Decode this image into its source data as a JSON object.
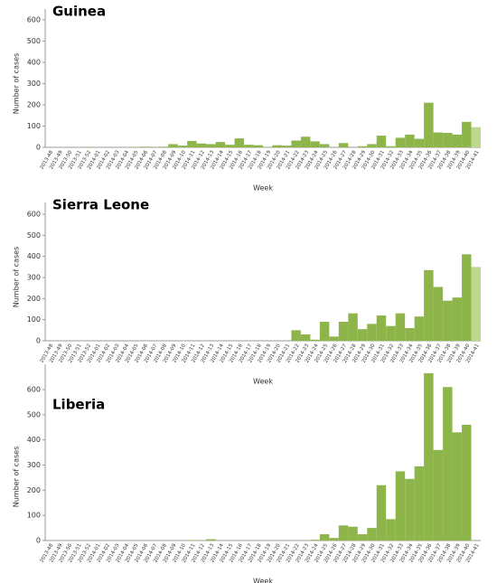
{
  "chart_data": [
    {
      "type": "bar",
      "title": "Guinea",
      "xlabel": "Week",
      "ylabel": "Number of cases",
      "categories": [
        "2013-48",
        "2013-49",
        "2013-50",
        "2013-51",
        "2013-52",
        "2014-01",
        "2014-02",
        "2014-03",
        "2014-04",
        "2014-05",
        "2014-06",
        "2014-07",
        "2014-08",
        "2014-09",
        "2014-10",
        "2014-11",
        "2014-12",
        "2014-13",
        "2014-14",
        "2014-15",
        "2014-16",
        "2014-17",
        "2014-18",
        "2014-19",
        "2014-20",
        "2014-21",
        "2014-22",
        "2014-23",
        "2014-24",
        "2014-25",
        "2014-26",
        "2014-27",
        "2014-28",
        "2014-29",
        "2014-30",
        "2014-31",
        "2014-32",
        "2014-33",
        "2014-34",
        "2014-35",
        "2014-36",
        "2014-37",
        "2014-38",
        "2014-39",
        "2014-40",
        "2014-41"
      ],
      "values": [
        0,
        0,
        0,
        0,
        2,
        0,
        0,
        0,
        1,
        1,
        3,
        1,
        3,
        15,
        8,
        30,
        18,
        15,
        25,
        12,
        42,
        12,
        10,
        0,
        10,
        8,
        32,
        50,
        28,
        15,
        0,
        20,
        0,
        5,
        15,
        55,
        5,
        45,
        60,
        40,
        210,
        70,
        68,
        60,
        120,
        95
      ],
      "color": "#8db54a",
      "last_bar_color": "#bcd98f",
      "ylim": [
        0,
        600
      ],
      "yticks": [
        0,
        100,
        200,
        300,
        400,
        500,
        600
      ]
    },
    {
      "type": "bar",
      "title": "Sierra Leone",
      "xlabel": "Week",
      "ylabel": "Number of cases",
      "categories": [
        "2013-48",
        "2013-49",
        "2013-50",
        "2013-51",
        "2013-52",
        "2014-01",
        "2014-02",
        "2014-03",
        "2014-04",
        "2014-05",
        "2014-06",
        "2014-07",
        "2014-08",
        "2014-09",
        "2014-10",
        "2014-11",
        "2014-12",
        "2014-13",
        "2014-14",
        "2014-15",
        "2014-16",
        "2014-17",
        "2014-18",
        "2014-19",
        "2014-20",
        "2014-21",
        "2014-22",
        "2014-23",
        "2014-24",
        "2014-25",
        "2014-26",
        "2014-27",
        "2014-28",
        "2014-29",
        "2014-30",
        "2014-31",
        "2014-32",
        "2014-33",
        "2014-34",
        "2014-35",
        "2014-36",
        "2014-37",
        "2014-38",
        "2014-39",
        "2014-40",
        "2014-41"
      ],
      "values": [
        0,
        0,
        0,
        0,
        0,
        0,
        0,
        0,
        0,
        0,
        0,
        0,
        0,
        0,
        0,
        0,
        0,
        0,
        0,
        0,
        0,
        0,
        0,
        0,
        0,
        0,
        50,
        30,
        5,
        90,
        20,
        90,
        130,
        55,
        80,
        120,
        70,
        130,
        60,
        115,
        335,
        255,
        190,
        205,
        410,
        350
      ],
      "color": "#8db54a",
      "last_bar_color": "#bcd98f",
      "ylim": [
        0,
        600
      ],
      "yticks": [
        0,
        100,
        200,
        300,
        400,
        500,
        600
      ]
    },
    {
      "type": "bar",
      "title": "Liberia",
      "xlabel": "Week",
      "ylabel": "Number of cases",
      "categories": [
        "2013-48",
        "2013-49",
        "2013-50",
        "2013-51",
        "2013-52",
        "2014-01",
        "2014-02",
        "2014-03",
        "2014-04",
        "2014-05",
        "2014-06",
        "2014-07",
        "2014-08",
        "2014-09",
        "2014-10",
        "2014-11",
        "2014-12",
        "2014-13",
        "2014-14",
        "2014-15",
        "2014-16",
        "2014-17",
        "2014-18",
        "2014-19",
        "2014-20",
        "2014-21",
        "2014-22",
        "2014-23",
        "2014-24",
        "2014-25",
        "2014-26",
        "2014-27",
        "2014-28",
        "2014-29",
        "2014-30",
        "2014-31",
        "2014-32",
        "2014-33",
        "2014-34",
        "2014-35",
        "2014-36",
        "2014-37",
        "2014-38",
        "2014-39",
        "2014-40",
        "2014-41"
      ],
      "values": [
        0,
        0,
        0,
        0,
        0,
        0,
        0,
        0,
        0,
        0,
        0,
        0,
        0,
        0,
        0,
        2,
        0,
        5,
        0,
        0,
        0,
        0,
        0,
        0,
        0,
        0,
        0,
        0,
        3,
        25,
        10,
        60,
        55,
        25,
        50,
        220,
        85,
        275,
        245,
        295,
        665,
        360,
        610,
        430,
        460,
        0
      ],
      "color": "#8db54a",
      "last_bar_color": "#bcd98f",
      "ylim": [
        0,
        700
      ],
      "yticks": [
        0,
        100,
        200,
        300,
        400,
        500,
        600
      ]
    }
  ]
}
